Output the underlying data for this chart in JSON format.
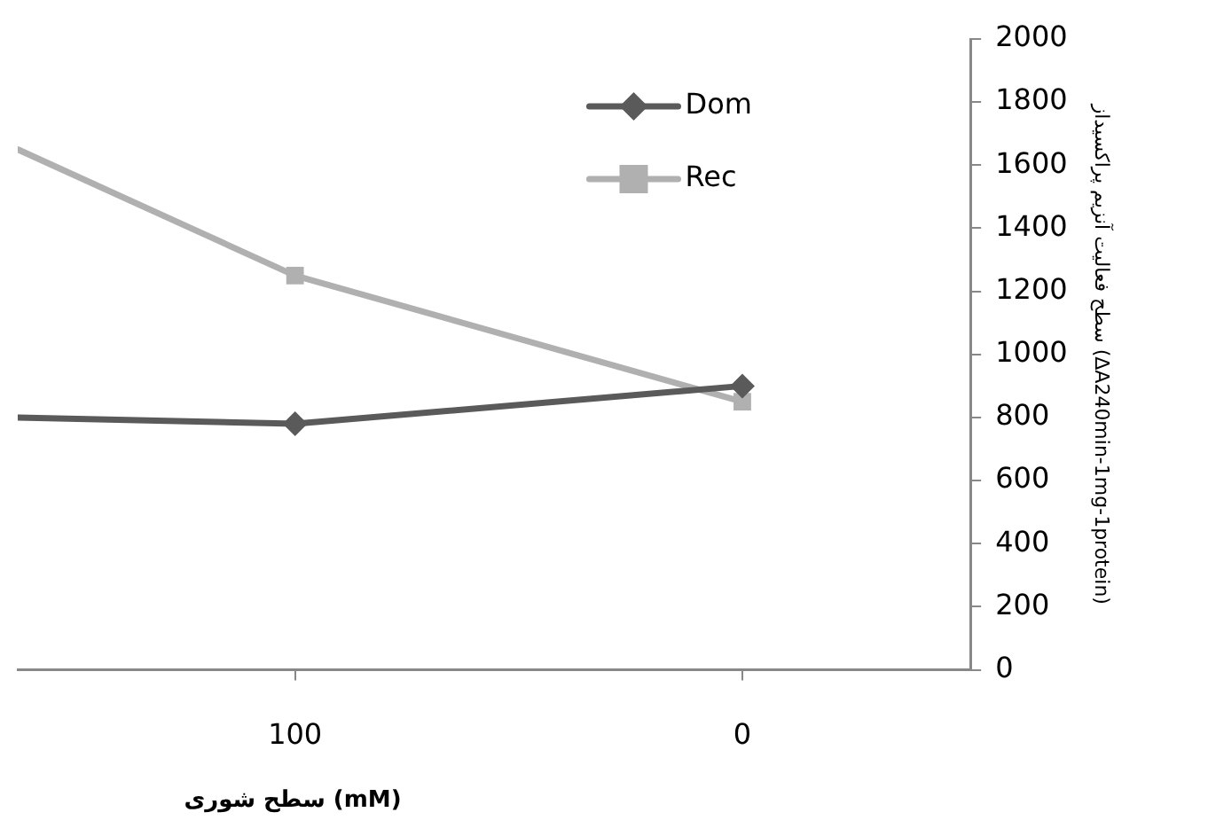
{
  "chart_data": {
    "type": "line",
    "xlabel": "سطح شوری (mM)",
    "ylabel": "سطح فعالیت آنزیم پراکسیداز (ΔA240min-1mg-1protein)",
    "x": [
      162,
      100,
      0
    ],
    "xlim": [
      162,
      -51
    ],
    "xticks": [
      100,
      0
    ],
    "ylim": [
      0,
      2000
    ],
    "yticks": [
      0,
      200,
      400,
      600,
      800,
      1000,
      1200,
      1400,
      1600,
      1800,
      2000
    ],
    "series": [
      {
        "name": "Dom",
        "color": "#5a5a5a",
        "marker": "diamond",
        "values": [
          800,
          780,
          900
        ]
      },
      {
        "name": "Rec",
        "color": "#b0b0b0",
        "marker": "square",
        "values": [
          1650,
          1250,
          850
        ]
      }
    ],
    "grid": false,
    "legend": "top"
  }
}
